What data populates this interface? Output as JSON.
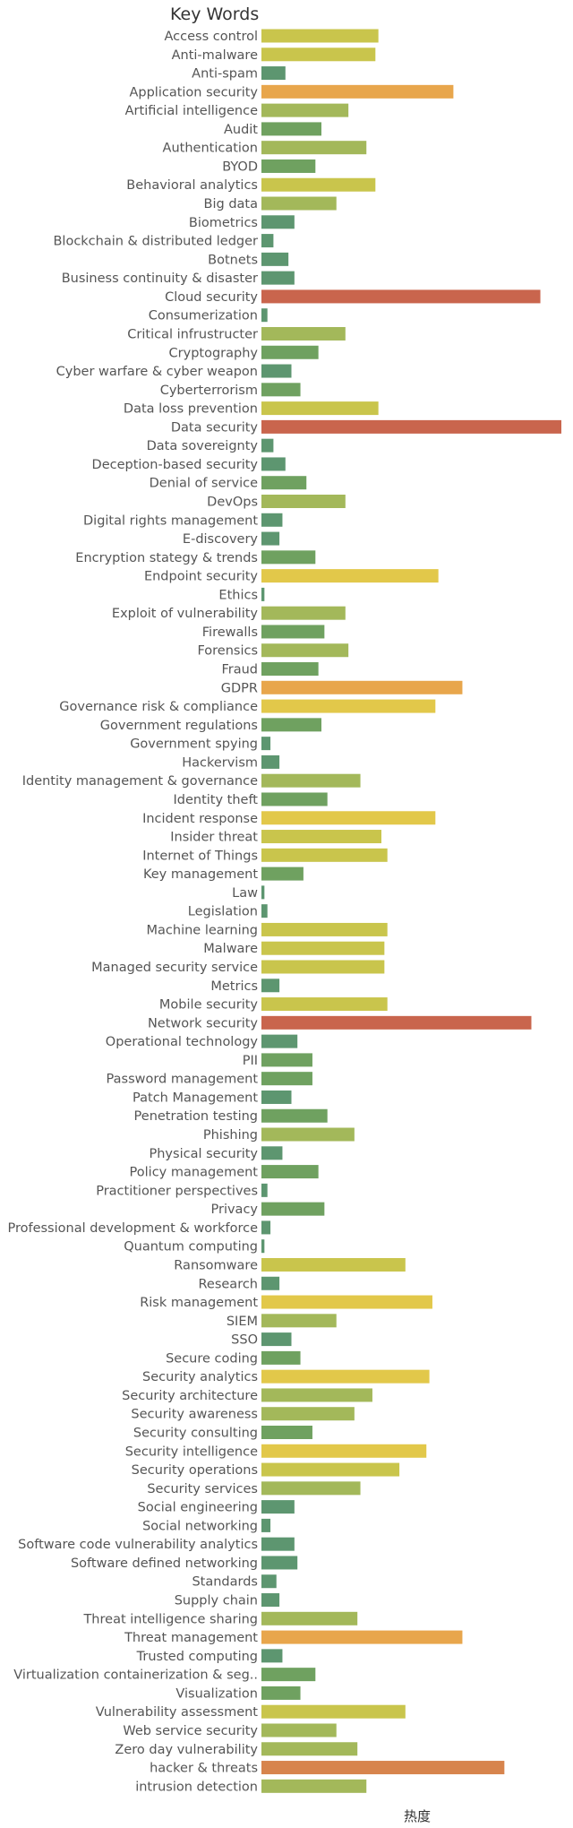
{
  "chart_data": {
    "type": "bar",
    "orientation": "horizontal",
    "title": "Key Words",
    "xlabel": "热度",
    "ylabel": "",
    "xlim": [
      0,
      100
    ],
    "grid": false,
    "legend": "none",
    "color_scale": [
      "#5d9670",
      "#6fa160",
      "#a3b85a",
      "#c9c54c",
      "#e2c84a",
      "#e8a64c",
      "#d7844d",
      "#c9654d"
    ],
    "categories": [
      "Access control",
      "Anti-malware",
      "Anti-spam",
      "Application security",
      "Artificial intelligence",
      "Audit",
      "Authentication",
      "BYOD",
      "Behavioral analytics",
      "Big data",
      "Biometrics",
      "Blockchain & distributed ledger",
      "Botnets",
      "Business continuity & disaster",
      "Cloud security",
      "Consumerization",
      "Critical infrustructer",
      "Cryptography",
      "Cyber warfare & cyber weapon",
      "Cyberterrorism",
      "Data loss prevention",
      "Data security",
      "Data sovereignty",
      "Deception-based security",
      "Denial of service",
      "DevOps",
      "Digital rights management",
      "E-discovery",
      "Encryption stategy & trends",
      "Endpoint security",
      "Ethics",
      "Exploit of vulnerability",
      "Firewalls",
      "Forensics",
      "Fraud",
      "GDPR",
      "Governance risk & compliance",
      "Government regulations",
      "Government spying",
      "Hackervism",
      "Identity management & governance",
      "Identity theft",
      "Incident response",
      "Insider threat",
      "Internet of Things",
      "Key management",
      "Law",
      "Legislation",
      "Machine learning",
      "Malware",
      "Managed security service",
      "Metrics",
      "Mobile security",
      "Network security",
      "Operational technology",
      "PII",
      "Password management",
      "Patch Management",
      "Penetration testing",
      "Phishing",
      "Physical security",
      "Policy management",
      "Practitioner perspectives",
      "Privacy",
      "Professional development & workforce",
      "Quantum computing",
      "Ransomware",
      "Research",
      "Risk management",
      "SIEM",
      "SSO",
      "Secure coding",
      "Security analytics",
      "Security architecture",
      "Security awareness",
      "Security consulting",
      "Security intelligence",
      "Security operations",
      "Security services",
      "Social engineering",
      "Social networking",
      "Software code vulnerability analytics",
      "Software defined networking",
      "Standards",
      "Supply chain",
      "Threat intelligence sharing",
      "Threat management",
      "Trusted computing",
      "Virtualization containerization & seg..",
      "Visualization",
      "Vulnerability assessment",
      "Web service security",
      "Zero day vulnerability",
      "hacker & threats",
      "intrusion detection"
    ],
    "values": [
      39,
      38,
      8,
      64,
      29,
      20,
      35,
      18,
      38,
      25,
      11,
      4,
      9,
      11,
      93,
      2,
      28,
      19,
      10,
      13,
      39,
      100,
      4,
      8,
      15,
      28,
      7,
      6,
      18,
      59,
      1,
      28,
      21,
      29,
      19,
      67,
      58,
      20,
      3,
      6,
      33,
      22,
      58,
      40,
      42,
      14,
      1,
      2,
      42,
      41,
      41,
      6,
      42,
      90,
      12,
      17,
      17,
      10,
      22,
      31,
      7,
      19,
      2,
      21,
      3,
      1,
      48,
      6,
      57,
      25,
      10,
      13,
      56,
      37,
      31,
      17,
      55,
      46,
      33,
      11,
      3,
      11,
      12,
      5,
      6,
      32,
      67,
      7,
      18,
      13,
      48,
      25,
      32,
      81,
      35
    ]
  }
}
